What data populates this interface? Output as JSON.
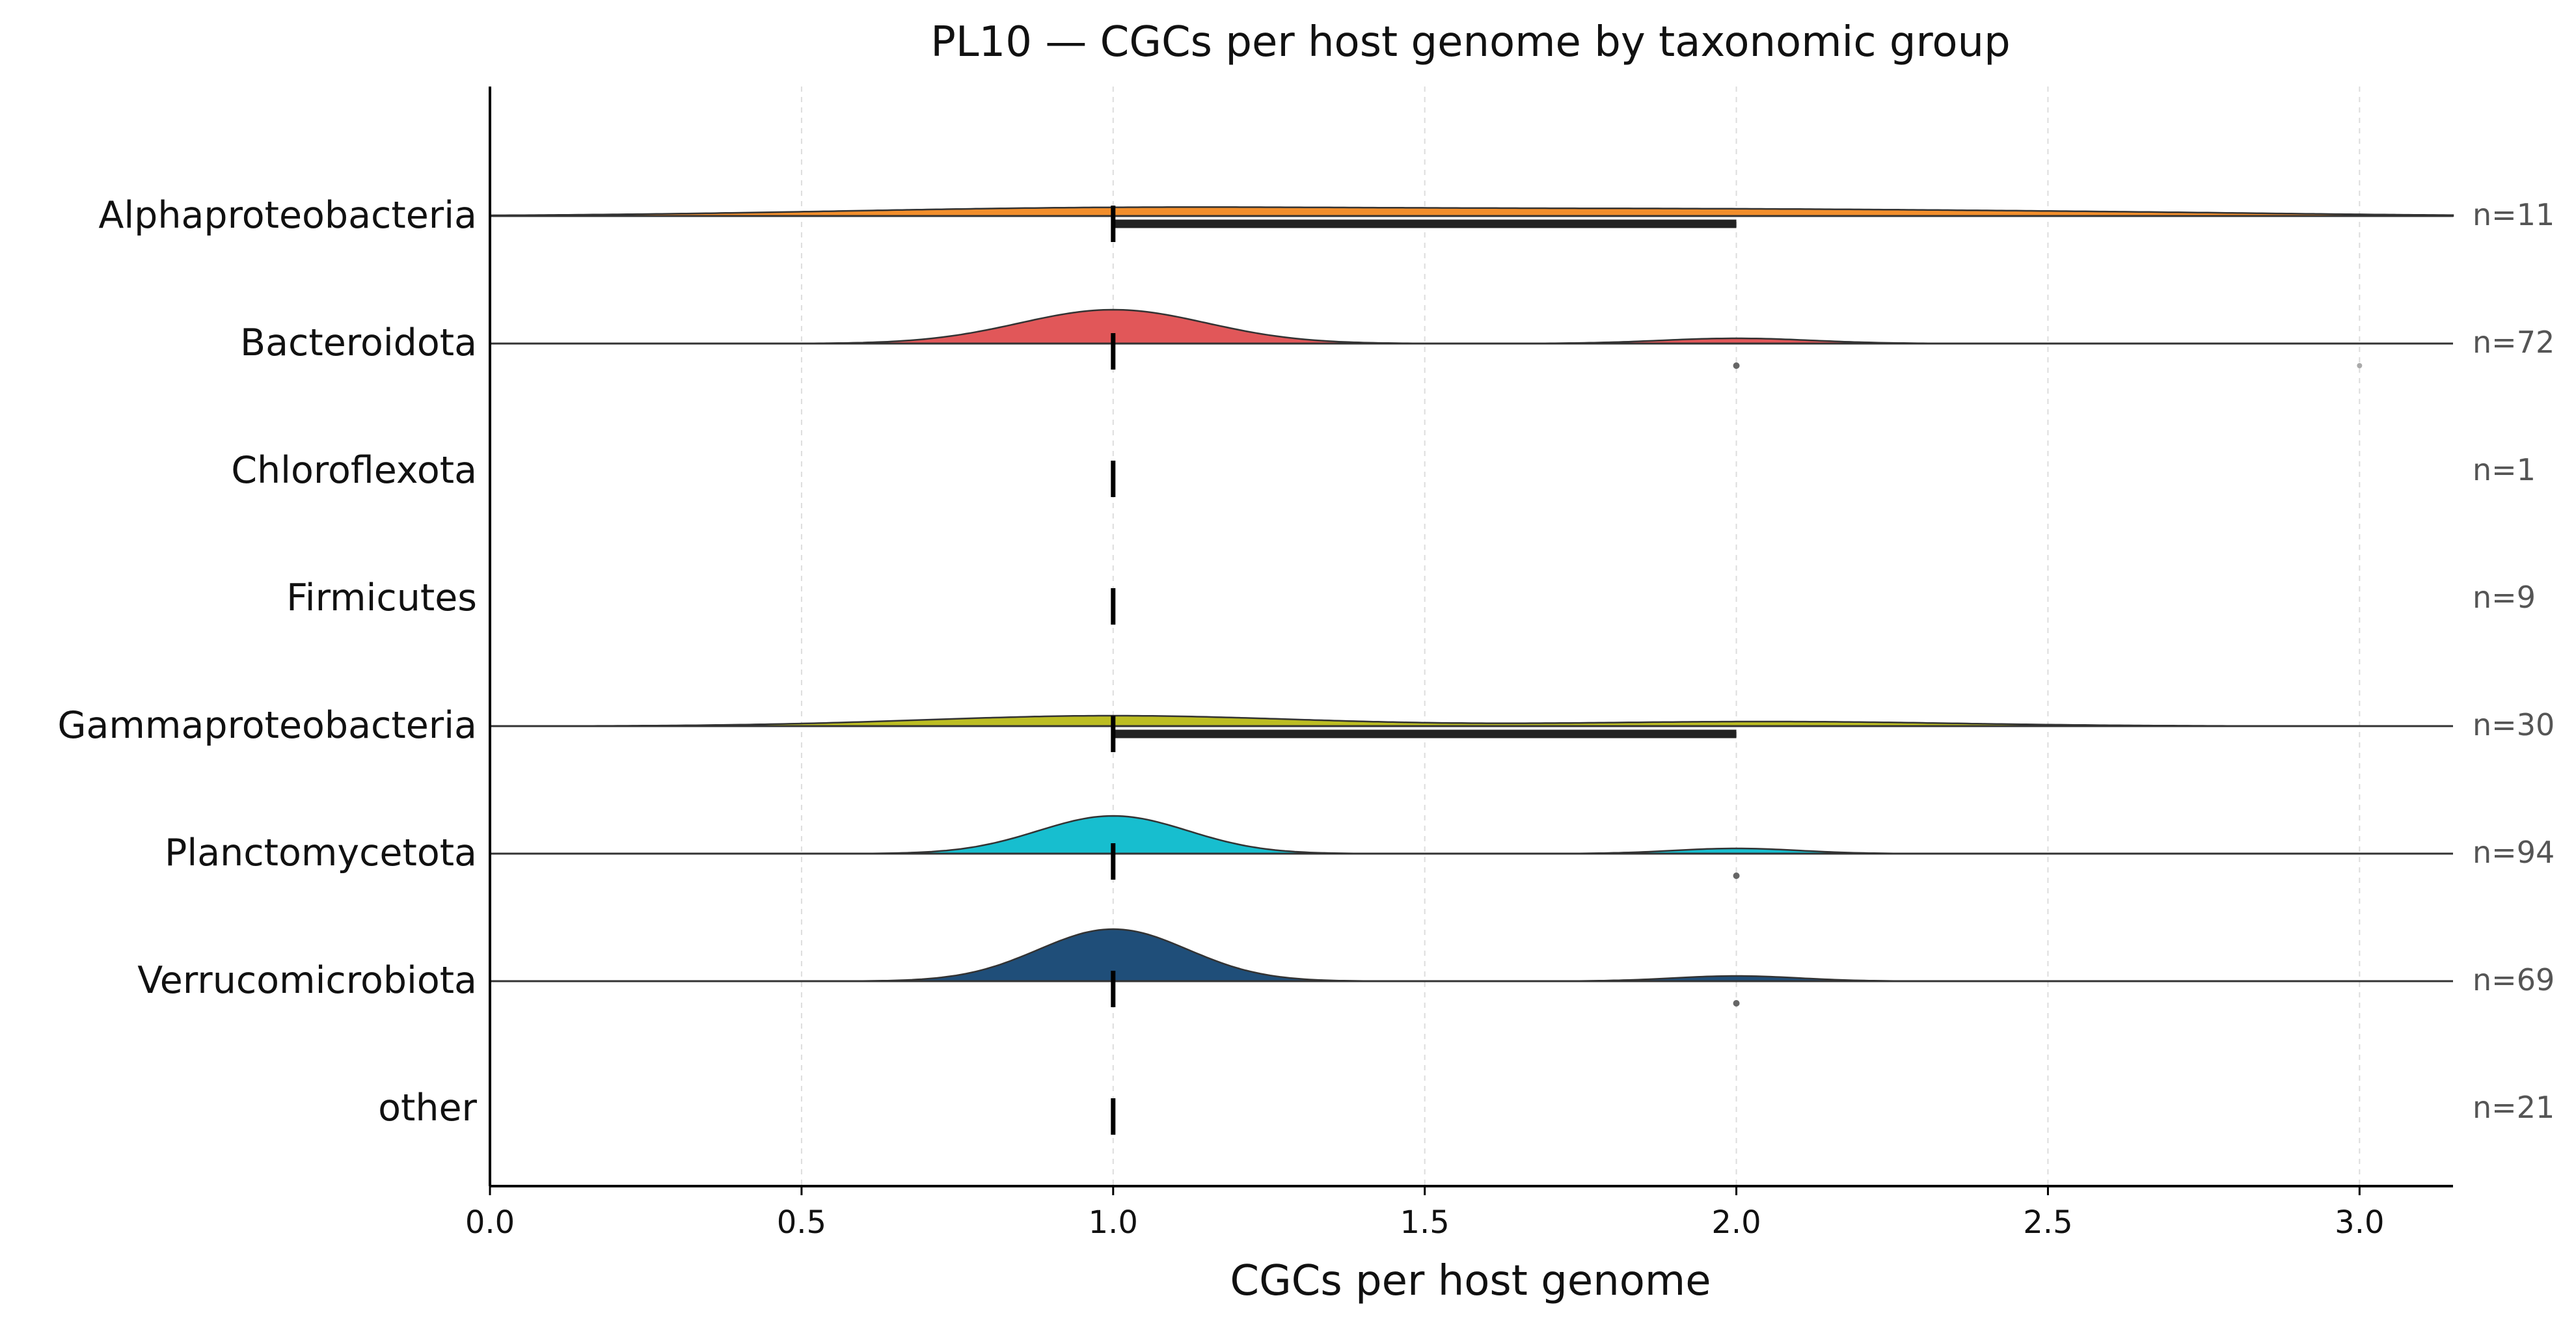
{
  "chart_data": {
    "type": "ridgeline",
    "title": "PL10 — CGCs per host genome by taxonomic group",
    "xlabel": "CGCs per host genome",
    "ylabel": "",
    "xlim": [
      0.0,
      3.15
    ],
    "xticks": [
      "0.0",
      "0.5",
      "1.0",
      "1.5",
      "2.0",
      "2.5",
      "3.0"
    ],
    "grid": "vertical dashed",
    "groups": [
      {
        "name": "Alphaproteobacteria",
        "n": "n=11",
        "color": "#f28e2b",
        "median": 1.0,
        "iqr": [
          1.0,
          2.0
        ],
        "outliers": [],
        "density": [
          {
            "mu": 1.0,
            "sd": 0.45,
            "h": 0.06
          },
          {
            "mu": 2.0,
            "sd": 0.5,
            "h": 0.05
          },
          {
            "mu": 2.7,
            "sd": 0.3,
            "h": 0.01
          }
        ]
      },
      {
        "name": "Bacteroidota",
        "n": "n=72",
        "color": "#e15759",
        "median": 1.0,
        "iqr": [
          1.0,
          1.0
        ],
        "outliers": [
          2.0,
          3.0
        ],
        "density": [
          {
            "mu": 1.0,
            "sd": 0.15,
            "h": 0.26
          },
          {
            "mu": 2.0,
            "sd": 0.12,
            "h": 0.04
          }
        ]
      },
      {
        "name": "Chloroflexota",
        "n": "n=1",
        "color": "#76b7b2",
        "median": 1.0,
        "iqr": [
          1.0,
          1.0
        ],
        "outliers": [],
        "density": []
      },
      {
        "name": "Firmicutes",
        "n": "n=9",
        "color": "#59a14f",
        "median": 1.0,
        "iqr": [
          1.0,
          1.0
        ],
        "outliers": [],
        "density": []
      },
      {
        "name": "Gammaproteobacteria",
        "n": "n=30",
        "color": "#bcbd22",
        "median": 1.0,
        "iqr": [
          1.0,
          2.0
        ],
        "outliers": [],
        "density": [
          {
            "mu": 1.0,
            "sd": 0.3,
            "h": 0.08
          },
          {
            "mu": 2.05,
            "sd": 0.3,
            "h": 0.035
          }
        ]
      },
      {
        "name": "Planctomycetota",
        "n": "n=94",
        "color": "#17becf",
        "median": 1.0,
        "iqr": [
          1.0,
          1.0
        ],
        "outliers": [
          2.0
        ],
        "density": [
          {
            "mu": 1.0,
            "sd": 0.12,
            "h": 0.29
          },
          {
            "mu": 2.0,
            "sd": 0.1,
            "h": 0.04
          }
        ]
      },
      {
        "name": "Verrucomicrobiota",
        "n": "n=69",
        "color": "#1f4e79",
        "median": 1.0,
        "iqr": [
          1.0,
          1.0
        ],
        "outliers": [
          2.0
        ],
        "density": [
          {
            "mu": 1.0,
            "sd": 0.12,
            "h": 0.4
          },
          {
            "mu": 2.0,
            "sd": 0.1,
            "h": 0.04
          }
        ]
      },
      {
        "name": "other",
        "n": "n=21",
        "color": "#7f7f7f",
        "median": 1.0,
        "iqr": [
          1.0,
          1.0
        ],
        "outliers": [],
        "density": []
      }
    ]
  }
}
